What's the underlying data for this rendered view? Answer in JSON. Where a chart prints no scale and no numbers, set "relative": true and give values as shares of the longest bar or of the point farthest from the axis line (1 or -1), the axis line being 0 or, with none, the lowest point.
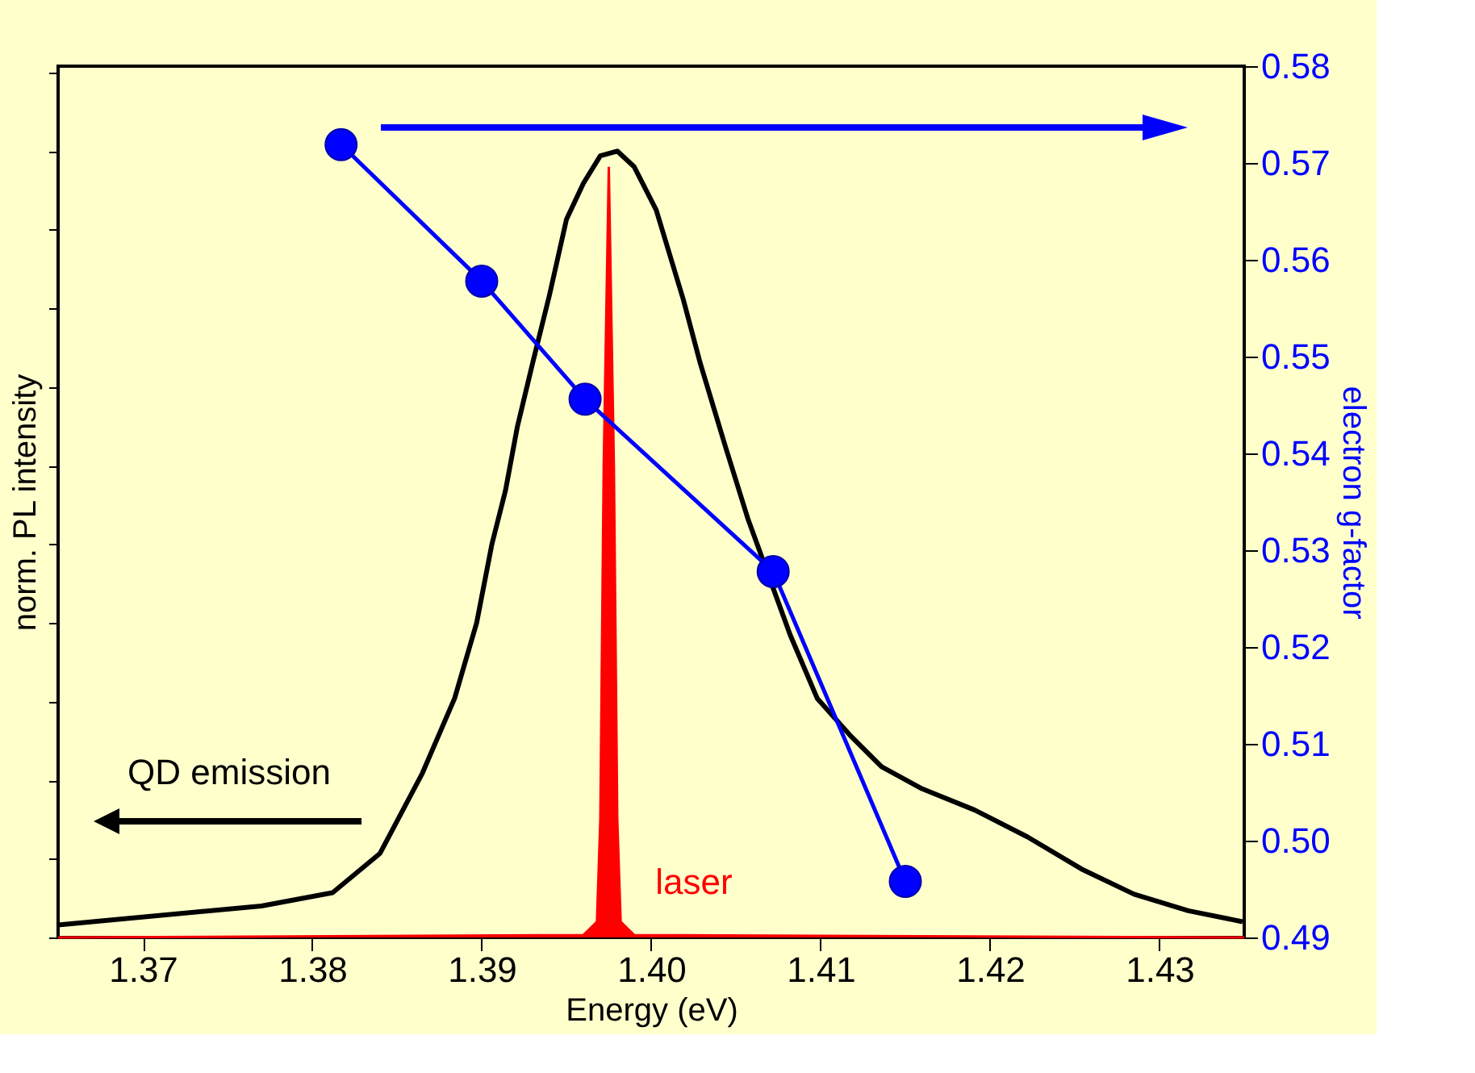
{
  "chart_data": {
    "type": "line",
    "xlabel": "Energy (eV)",
    "ylabel": "norm. PL intensity",
    "y2label": "electron g-factor",
    "relative": true,
    "xlim": [
      1.365,
      1.435
    ],
    "xticks": [
      1.37,
      1.38,
      1.39,
      {
        "value": 1.4,
        "label": "1.40"
      },
      1.41,
      1.42,
      1.43
    ],
    "y2lim": [
      0.49,
      0.58
    ],
    "y2ticks": [
      0.49,
      {
        "value": 0.5,
        "label": "0.50"
      },
      0.51,
      0.52,
      0.53,
      0.54,
      0.55,
      0.56,
      0.57,
      0.58
    ],
    "grid": false,
    "series": [
      {
        "line_style": "solid",
        "color": "#000000",
        "x": [
          1.365,
          1.377,
          1.3812,
          1.384,
          1.3865,
          1.3884,
          1.3897,
          1.3906,
          1.3914,
          1.3921,
          1.393,
          1.394,
          1.395,
          1.396,
          1.397,
          1.398,
          1.399,
          1.4003,
          1.4019,
          1.4029,
          1.4044,
          1.4057,
          1.4082,
          1.4098,
          1.4117,
          1.4136,
          1.416,
          1.4191,
          1.4222,
          1.4254,
          1.4285,
          1.4317,
          1.4349
        ],
        "values": [
          0.016,
          0.04,
          0.057,
          0.107,
          0.209,
          0.304,
          0.4,
          0.5,
          0.568,
          0.649,
          0.73,
          0.817,
          0.913,
          0.959,
          0.994,
          1.0,
          0.98,
          0.925,
          0.811,
          0.73,
          0.623,
          0.533,
          0.385,
          0.304,
          0.258,
          0.217,
          0.189,
          0.162,
          0.128,
          0.087,
          0.055,
          0.034,
          0.02
        ]
      },
      {
        "type": "area",
        "color": "#ff0000",
        "x": [
          1.365,
          1.396,
          1.3968,
          1.397,
          1.3972,
          1.3975,
          1.3978,
          1.398,
          1.3982,
          1.399,
          1.435
        ],
        "values": [
          0,
          0.003,
          0.02,
          0.15,
          0.6,
          0.98,
          0.6,
          0.15,
          0.02,
          0.003,
          0
        ]
      },
      {
        "type": "line",
        "line_style": "solid",
        "axis": "y2",
        "color": "#0000ff",
        "marker": "circle",
        "x": [
          1.3817,
          1.39,
          1.3961,
          1.4072,
          1.415
        ],
        "values": [
          0.5719,
          0.5578,
          0.5456,
          0.5278,
          0.4958
        ]
      }
    ],
    "annotations": [
      "QD emission",
      "laser"
    ]
  }
}
